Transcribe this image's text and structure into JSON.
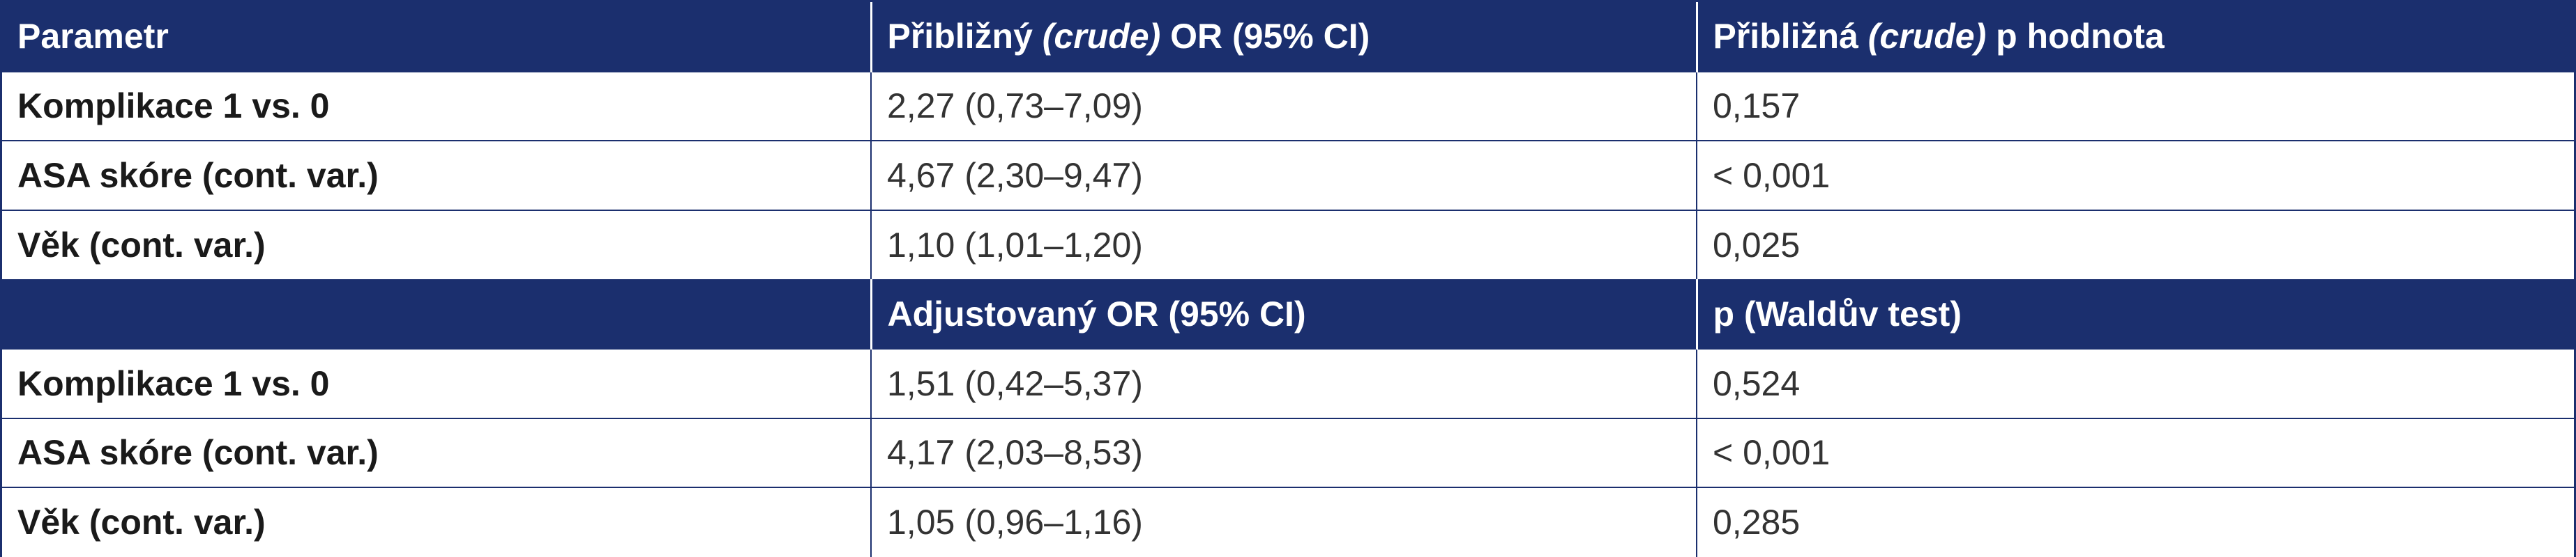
{
  "colors": {
    "header_background": "#1b2f6e",
    "header_text": "#ffffff",
    "border": "#1b2f6e",
    "body_text": "#222222"
  },
  "crude_section": {
    "header": {
      "parameter": "Parametr",
      "or_prefix": "Přibližný ",
      "or_italic": "(crude)",
      "or_suffix": " OR (95% CI)",
      "p_prefix": "Přibližná ",
      "p_italic": "(crude)",
      "p_suffix": " p hodnota"
    },
    "rows": [
      {
        "parameter": "Komplikace 1 vs. 0",
        "or": "2,27 (0,73–7,09)",
        "p": "0,157"
      },
      {
        "parameter": "ASA skóre (cont. var.)",
        "or": "4,67 (2,30–9,47)",
        "p": "< 0,001"
      },
      {
        "parameter": "Věk (cont. var.)",
        "or": "1,10 (1,01–1,20)",
        "p": "0,025"
      }
    ]
  },
  "adjusted_section": {
    "header": {
      "parameter": "",
      "or": "Adjustovaný OR (95% CI)",
      "p": "p (Waldův test)"
    },
    "rows": [
      {
        "parameter": "Komplikace 1 vs. 0",
        "or": "1,51 (0,42–5,37)",
        "p": "0,524"
      },
      {
        "parameter": "ASA skóre (cont. var.)",
        "or": "4,17 (2,03–8,53)",
        "p": "< 0,001"
      },
      {
        "parameter": "Věk (cont. var.)",
        "or": "1,05 (0,96–1,16)",
        "p": "0,285"
      }
    ]
  }
}
